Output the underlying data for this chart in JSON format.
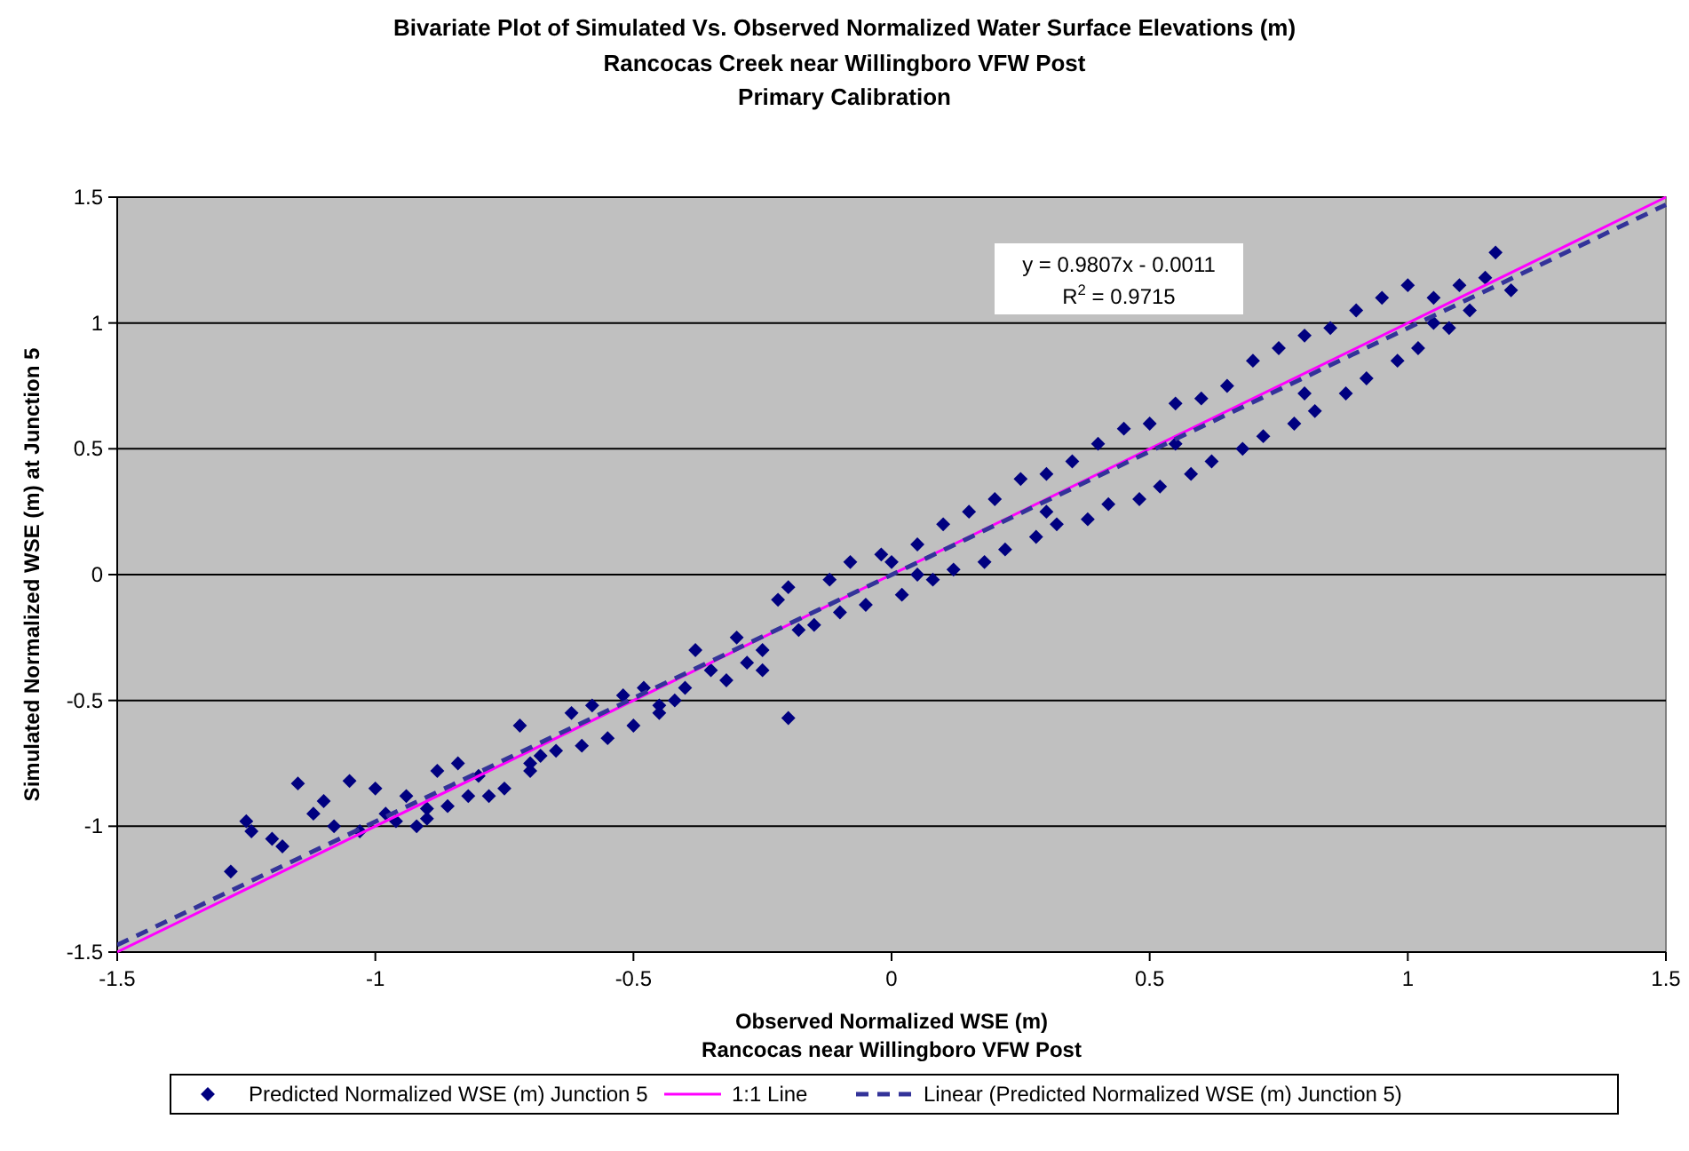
{
  "chart_data": {
    "type": "scatter",
    "title": "Bivariate Plot of Simulated Vs. Observed Normalized Water Surface Elevations (m)",
    "subtitle": "Rancocas Creek near Willingboro VFW Post\nPrimary Calibration",
    "xlabel": "Observed Normalized WSE (m)\nRancocas near Willingboro VFW Post",
    "ylabel": "Simulated Normalized WSE (m) at Junction 5",
    "xlim": [
      -1.5,
      1.5
    ],
    "ylim": [
      -1.5,
      1.5
    ],
    "xticks": [
      -1.5,
      -1,
      -0.5,
      0,
      0.5,
      1,
      1.5
    ],
    "yticks": [
      -1.5,
      -1,
      -0.5,
      0,
      0.5,
      1,
      1.5
    ],
    "grid": "y",
    "legend": "bottom",
    "annotations": [
      "y = 0.9807x - 0.0011",
      "R$^{2}$ = 0.9715"
    ],
    "series": [
      {
        "type": "scatter",
        "name": "Predicted Normalized WSE (m) Junction 5",
        "color": "#000080",
        "marker": "diamond",
        "x": [
          -1.28,
          -1.25,
          -1.24,
          -1.2,
          -1.18,
          -1.15,
          -1.12,
          -1.1,
          -1.08,
          -1.05,
          -1.03,
          -1.0,
          -0.98,
          -0.96,
          -0.94,
          -0.92,
          -0.9,
          -0.88,
          -0.86,
          -0.84,
          -0.82,
          -0.8,
          -0.78,
          -0.75,
          -0.72,
          -0.7,
          -0.68,
          -0.65,
          -0.62,
          -0.6,
          -0.58,
          -0.55,
          -0.52,
          -0.5,
          -0.48,
          -0.45,
          -0.42,
          -0.4,
          -0.38,
          -0.35,
          -0.32,
          -0.3,
          -0.28,
          -0.25,
          -0.22,
          -0.2,
          -0.2,
          -0.18,
          -0.15,
          -0.12,
          -0.1,
          -0.08,
          -0.05,
          -0.02,
          0.0,
          0.02,
          0.05,
          0.08,
          0.1,
          0.12,
          0.15,
          0.18,
          0.2,
          0.22,
          0.25,
          0.28,
          0.3,
          0.32,
          0.35,
          0.38,
          0.4,
          0.42,
          0.45,
          0.48,
          0.5,
          0.52,
          0.55,
          0.58,
          0.6,
          0.62,
          0.65,
          0.68,
          0.7,
          0.72,
          0.75,
          0.78,
          0.8,
          0.82,
          0.85,
          0.88,
          0.9,
          0.92,
          0.95,
          0.98,
          1.0,
          1.02,
          1.05,
          1.08,
          1.1,
          1.12,
          1.15,
          1.17,
          1.2,
          -0.9,
          -0.7,
          -0.45,
          -0.25,
          0.05,
          0.3,
          0.55,
          0.8,
          1.05
        ],
        "values": [
          -1.18,
          -0.98,
          -1.02,
          -1.05,
          -1.08,
          -0.83,
          -0.95,
          -0.9,
          -1.0,
          -0.82,
          -1.02,
          -0.85,
          -0.95,
          -0.98,
          -0.88,
          -1.0,
          -0.97,
          -0.78,
          -0.92,
          -0.75,
          -0.88,
          -0.8,
          -0.88,
          -0.85,
          -0.6,
          -0.78,
          -0.72,
          -0.7,
          -0.55,
          -0.68,
          -0.52,
          -0.65,
          -0.48,
          -0.6,
          -0.45,
          -0.55,
          -0.5,
          -0.45,
          -0.3,
          -0.38,
          -0.42,
          -0.25,
          -0.35,
          -0.3,
          -0.1,
          -0.57,
          -0.05,
          -0.22,
          -0.2,
          -0.02,
          -0.15,
          0.05,
          -0.12,
          0.08,
          0.05,
          -0.08,
          0.12,
          -0.02,
          0.2,
          0.02,
          0.25,
          0.05,
          0.3,
          0.1,
          0.38,
          0.15,
          0.4,
          0.2,
          0.45,
          0.22,
          0.52,
          0.28,
          0.58,
          0.3,
          0.6,
          0.35,
          0.68,
          0.4,
          0.7,
          0.45,
          0.75,
          0.5,
          0.85,
          0.55,
          0.9,
          0.6,
          0.95,
          0.65,
          0.98,
          0.72,
          1.05,
          0.78,
          1.1,
          0.85,
          1.15,
          0.9,
          1.1,
          0.98,
          1.15,
          1.05,
          1.18,
          1.28,
          1.13,
          -0.93,
          -0.75,
          -0.52,
          -0.38,
          0.0,
          0.25,
          0.52,
          0.72,
          1.0
        ]
      },
      {
        "type": "line",
        "name": "1:1 Line",
        "color": "#ff00ff",
        "line_style": "solid",
        "x": [
          -1.5,
          1.5
        ],
        "values": [
          -1.5,
          1.5
        ]
      },
      {
        "type": "line",
        "name": "Linear (Predicted Normalized WSE (m) Junction 5)",
        "color": "#333399",
        "line_style": "dashed",
        "x": [
          -1.5,
          1.5
        ],
        "values": [
          -1.472,
          1.47
        ]
      }
    ]
  }
}
